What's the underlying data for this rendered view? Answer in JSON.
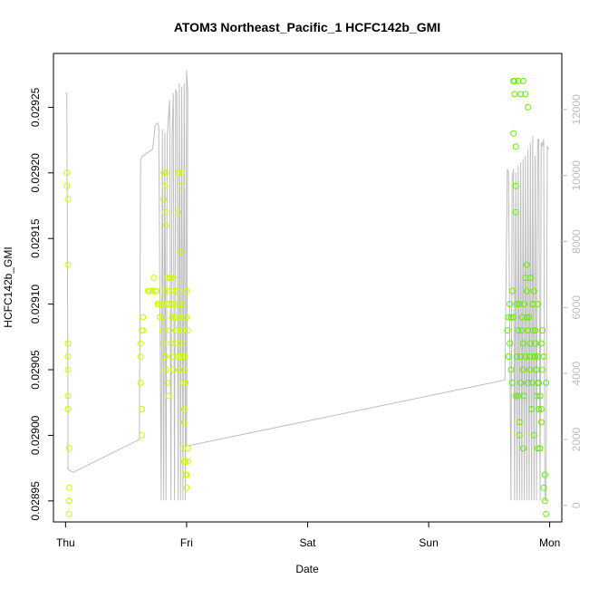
{
  "chart_data": {
    "type": "scatter",
    "title": "ATOM3 Northeast_Pacific_1 HCFC142b_GMI",
    "xlabel": "Date",
    "ylabel": "HCFC142b_GMI",
    "x_ticks": [
      {
        "label": "Thu",
        "value": 0
      },
      {
        "label": "Fri",
        "value": 1
      },
      {
        "label": "Sat",
        "value": 2
      },
      {
        "label": "Sun",
        "value": 3
      },
      {
        "label": "Mon",
        "value": 4
      }
    ],
    "y_ticks": [
      0.02895,
      0.029,
      0.02905,
      0.0291,
      0.02915,
      0.0292,
      0.02925
    ],
    "y_tick_labels": [
      "0.02895",
      "0.02900",
      "0.02905",
      "0.02910",
      "0.02915",
      "0.02920",
      "0.02925"
    ],
    "y2_ticks": [
      0,
      2000,
      4000,
      6000,
      8000,
      10000,
      12000
    ],
    "y2_tick_labels": [
      "0",
      "2000",
      "4000",
      "6000",
      "8000",
      "10000",
      "12000"
    ],
    "xlim": [
      -0.1,
      4.1
    ],
    "ylim": [
      0.028934,
      0.029291
    ],
    "y2lim": [
      -500,
      13700
    ],
    "colors": {
      "points_early": "#ccff00",
      "points_late": "#66ee00",
      "altitude_line": "#bdbdbd"
    },
    "series": [
      {
        "kind": "points",
        "color": "#ccff00",
        "x": [
          0.01,
          0.01,
          0.02,
          0.02,
          0.02,
          0.02,
          0.02,
          0.02,
          0.02,
          0.02,
          0.03,
          0.03,
          0.03,
          0.03,
          0.03,
          0.03,
          0.62,
          0.62,
          0.62,
          0.63,
          0.63,
          0.63,
          0.63,
          0.64,
          0.64,
          0.64,
          0.68,
          0.69,
          0.7,
          0.72,
          0.73,
          0.74,
          0.75,
          0.76,
          0.77,
          0.78,
          0.79,
          0.8,
          0.81,
          0.81,
          0.82,
          0.82,
          0.83,
          0.83,
          0.84,
          0.84,
          0.85,
          0.86,
          0.87,
          0.88,
          0.88,
          0.89,
          0.9,
          0.91,
          0.92,
          0.92,
          0.93,
          0.93,
          0.94,
          0.94,
          0.95,
          0.95,
          0.96,
          0.96,
          0.97,
          0.97,
          0.98,
          0.98,
          0.99,
          0.99,
          1.0,
          1.0,
          0.8,
          0.81,
          0.82,
          0.83,
          0.84,
          0.85,
          0.86,
          0.87,
          0.88,
          0.89,
          0.9,
          0.91,
          0.92,
          0.93,
          0.94,
          0.95,
          0.96,
          0.97,
          0.98,
          0.99,
          1.0,
          1.01,
          0.82,
          0.84,
          0.86,
          0.88,
          0.9,
          0.92,
          0.94,
          0.96,
          0.98,
          1.0,
          0.97,
          0.98,
          0.99,
          1.0,
          1.0,
          1.01,
          1.01,
          0.99,
          0.98,
          0.97
        ],
        "y": [
          0.0292,
          0.02919,
          0.02918,
          0.02913,
          0.02907,
          0.02906,
          0.02905,
          0.02903,
          0.02902,
          0.02902,
          0.02899,
          0.02896,
          0.02895,
          0.02895,
          0.02895,
          0.02894,
          0.02907,
          0.02906,
          0.02904,
          0.02902,
          0.02902,
          0.029,
          0.02908,
          0.02908,
          0.02909,
          0.02909,
          0.02911,
          0.02911,
          0.02911,
          0.02911,
          0.02912,
          0.02911,
          0.02911,
          0.0291,
          0.0291,
          0.02909,
          0.0291,
          0.02909,
          0.0292,
          0.02918,
          0.02919,
          0.02917,
          0.0292,
          0.02916,
          0.02912,
          0.0291,
          0.02911,
          0.0291,
          0.02912,
          0.02909,
          0.0291,
          0.02912,
          0.0291,
          0.02909,
          0.02909,
          0.02911,
          0.0292,
          0.02917,
          0.0292,
          0.0291,
          0.02914,
          0.02906,
          0.0292,
          0.02919,
          0.02908,
          0.02904,
          0.02902,
          0.02901,
          0.02898,
          0.02897,
          0.02897,
          0.02896,
          0.02908,
          0.02907,
          0.02906,
          0.02905,
          0.02904,
          0.02903,
          0.02908,
          0.02907,
          0.02906,
          0.02905,
          0.02909,
          0.02908,
          0.02907,
          0.02906,
          0.02905,
          0.02908,
          0.02907,
          0.02906,
          0.02905,
          0.02904,
          0.02909,
          0.02908,
          0.02911,
          0.0291,
          0.02912,
          0.02909,
          0.02911,
          0.02908,
          0.02909,
          0.0291,
          0.02909,
          0.02911,
          0.02899,
          0.02898,
          0.02897,
          0.02897,
          0.02896,
          0.02898,
          0.02899,
          0.02904,
          0.02906,
          0.02908
        ]
      },
      {
        "kind": "points",
        "color": "#66ee00",
        "x": [
          3.65,
          3.66,
          3.66,
          3.67,
          3.67,
          3.68,
          3.68,
          3.69,
          3.69,
          3.7,
          3.7,
          3.71,
          3.71,
          3.72,
          3.72,
          3.73,
          3.73,
          3.74,
          3.74,
          3.75,
          3.75,
          3.76,
          3.76,
          3.77,
          3.77,
          3.78,
          3.78,
          3.79,
          3.79,
          3.8,
          3.8,
          3.81,
          3.81,
          3.82,
          3.82,
          3.83,
          3.83,
          3.84,
          3.84,
          3.85,
          3.85,
          3.86,
          3.86,
          3.87,
          3.87,
          3.88,
          3.88,
          3.89,
          3.89,
          3.9,
          3.9,
          3.91,
          3.91,
          3.92,
          3.92,
          3.93,
          3.93,
          3.94,
          3.94,
          3.95,
          3.95,
          3.96,
          3.96,
          3.97,
          3.97,
          3.7,
          3.72,
          3.74,
          3.76,
          3.78,
          3.8,
          3.82,
          3.84,
          3.86,
          3.88,
          3.9,
          3.72,
          3.75,
          3.78,
          3.81,
          3.84,
          3.87,
          3.9,
          3.93
        ],
        "y": [
          0.02908,
          0.02906,
          0.02909,
          0.02907,
          0.0291,
          0.02905,
          0.02909,
          0.02911,
          0.02904,
          0.02909,
          0.02927,
          0.02926,
          0.02927,
          0.02919,
          0.02917,
          0.0291,
          0.02906,
          0.02908,
          0.02903,
          0.029,
          0.0291,
          0.02904,
          0.02906,
          0.02908,
          0.02909,
          0.02907,
          0.02905,
          0.0291,
          0.02903,
          0.02912,
          0.02906,
          0.02909,
          0.02911,
          0.02908,
          0.02904,
          0.02906,
          0.02909,
          0.02907,
          0.02905,
          0.02902,
          0.02904,
          0.0291,
          0.02908,
          0.02906,
          0.029,
          0.02906,
          0.02907,
          0.02903,
          0.02905,
          0.02906,
          0.02899,
          0.02904,
          0.02902,
          0.02903,
          0.02899,
          0.02901,
          0.02907,
          0.02908,
          0.02905,
          0.02906,
          0.02896,
          0.02897,
          0.02895,
          0.02894,
          0.02904,
          0.02923,
          0.02922,
          0.02927,
          0.02926,
          0.02927,
          0.02926,
          0.02925,
          0.02912,
          0.0291,
          0.02908,
          0.02904,
          0.02903,
          0.02901,
          0.02899,
          0.02913,
          0.02912,
          0.02911,
          0.0291,
          0.02902
        ]
      },
      {
        "kind": "line",
        "axis": "right",
        "color": "#bdbdbd",
        "x": [
          0.0,
          0.01,
          0.02,
          0.02,
          0.06,
          0.61,
          0.62,
          0.64,
          0.72,
          0.74,
          0.76,
          0.77,
          0.79,
          0.8,
          0.81,
          0.82,
          0.83,
          0.84,
          0.86,
          0.87,
          0.88,
          0.89,
          0.9,
          0.91,
          0.92,
          0.93,
          0.94,
          0.95,
          0.96,
          0.97,
          0.98,
          0.99,
          1.0,
          1.01,
          1.0,
          3.63,
          3.65,
          3.66,
          3.68,
          3.69,
          3.7,
          3.71,
          3.72,
          3.73,
          3.74,
          3.75,
          3.76,
          3.77,
          3.78,
          3.79,
          3.8,
          3.81,
          3.82,
          3.83,
          3.84,
          3.85,
          3.86,
          3.87,
          3.88,
          3.89,
          3.9,
          3.91,
          3.92,
          3.93,
          3.94,
          3.95,
          3.96,
          3.97,
          3.98,
          3.99
        ],
        "y": [
          12500,
          12500,
          3200,
          1100,
          1000,
          2000,
          10500,
          10600,
          10800,
          11500,
          11600,
          11500,
          150,
          11400,
          150,
          11300,
          150,
          11200,
          12300,
          150,
          11200,
          12500,
          150,
          12600,
          12500,
          150,
          12800,
          150,
          12700,
          150,
          12800,
          150,
          13200,
          12500,
          1800,
          3800,
          10200,
          10100,
          150,
          9900,
          10200,
          150,
          10100,
          150,
          10300,
          150,
          10400,
          150,
          10500,
          150,
          10600,
          150,
          10800,
          150,
          11000,
          150,
          11200,
          150,
          10600,
          150,
          11100,
          11100,
          150,
          11000,
          10900,
          11100,
          150,
          150,
          10900,
          10800
        ]
      }
    ]
  }
}
